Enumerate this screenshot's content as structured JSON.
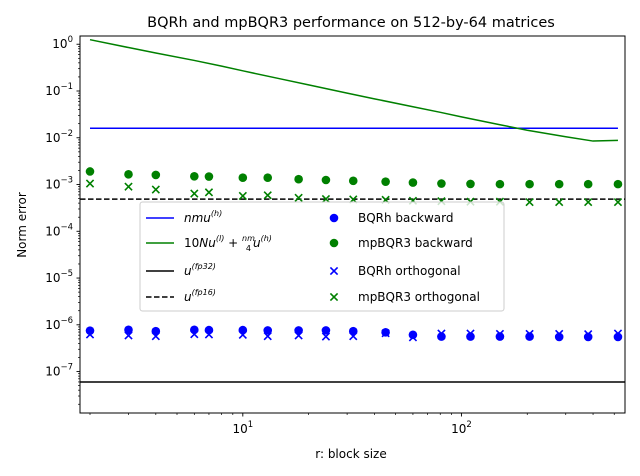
{
  "chart_data": {
    "type": "scatter",
    "title": "BQRh and mpBQR3 performance on 512-by-64 matrices",
    "xlabel": "r: block size",
    "ylabel": "Norm error",
    "xscale": "log",
    "yscale": "log",
    "xlim": [
      1.8,
      560
    ],
    "ylim": [
      1.3e-08,
      1.5
    ],
    "xticks": [
      {
        "value": 10,
        "base": "10",
        "exp": "1"
      },
      {
        "value": 100,
        "base": "10",
        "exp": "2"
      }
    ],
    "yticks": [
      {
        "value": 1,
        "base": "10",
        "exp": "0"
      },
      {
        "value": 0.1,
        "base": "10",
        "exp": "−1"
      },
      {
        "value": 0.01,
        "base": "10",
        "exp": "−2"
      },
      {
        "value": 0.001,
        "base": "10",
        "exp": "−3"
      },
      {
        "value": 0.0001,
        "base": "10",
        "exp": "−4"
      },
      {
        "value": 1e-05,
        "base": "10",
        "exp": "−5"
      },
      {
        "value": 1e-06,
        "base": "10",
        "exp": "−6"
      },
      {
        "value": 1e-07,
        "base": "10",
        "exp": "−7"
      }
    ],
    "grid": false,
    "x": [
      2,
      3,
      4,
      6,
      7,
      10,
      13,
      18,
      24,
      32,
      45,
      60,
      81,
      110,
      150,
      205,
      280,
      380,
      520
    ],
    "lines": [
      {
        "name": "nmu^(h)",
        "color": "#0000ff",
        "style": "solid",
        "x": [
          2,
          520
        ],
        "y": [
          0.016,
          0.016
        ]
      },
      {
        "name": "10Nu^(l) + (nm/4)u^(h)",
        "color": "#008000",
        "style": "solid",
        "x": [
          2,
          3,
          4,
          6,
          8,
          10,
          15,
          20,
          30,
          40,
          60,
          80,
          100,
          150,
          200,
          300,
          400,
          520
        ],
        "y": [
          1.25,
          0.85,
          0.65,
          0.45,
          0.34,
          0.27,
          0.18,
          0.135,
          0.09,
          0.068,
          0.046,
          0.035,
          0.028,
          0.019,
          0.0145,
          0.0105,
          0.0085,
          0.0088
        ]
      },
      {
        "name": "u^(fp32)",
        "color": "#000000",
        "style": "solid",
        "x": [
          1.8,
          560
        ],
        "y": [
          6e-08,
          6e-08
        ]
      },
      {
        "name": "u^(fp16)",
        "color": "#000000",
        "style": "dashed",
        "x": [
          1.8,
          560
        ],
        "y": [
          0.000488,
          0.000488
        ]
      }
    ],
    "series": [
      {
        "name": "BQRh backward",
        "color": "#0000ff",
        "marker": "circle",
        "values": [
          7.5e-07,
          7.8e-07,
          7.3e-07,
          7.8e-07,
          7.7e-07,
          7.7e-07,
          7.6e-07,
          7.6e-07,
          7.6e-07,
          7.3e-07,
          6.9e-07,
          6.1e-07,
          5.6e-07,
          5.6e-07,
          5.6e-07,
          5.6e-07,
          5.5e-07,
          5.5e-07,
          5.5e-07
        ]
      },
      {
        "name": "mpBQR3 backward",
        "color": "#008000",
        "marker": "circle",
        "values": [
          0.0019,
          0.00165,
          0.0016,
          0.0015,
          0.00148,
          0.0014,
          0.0014,
          0.0013,
          0.00125,
          0.0012,
          0.00115,
          0.0011,
          0.00105,
          0.00103,
          0.00102,
          0.00102,
          0.00102,
          0.00102,
          0.00102
        ]
      },
      {
        "name": "BQRh orthogonal",
        "color": "#0000ff",
        "marker": "x",
        "values": [
          6.2e-07,
          5.9e-07,
          5.7e-07,
          6.3e-07,
          6.2e-07,
          6.1e-07,
          5.7e-07,
          5.9e-07,
          5.6e-07,
          5.7e-07,
          6.6e-07,
          5.4e-07,
          6.5e-07,
          6.5e-07,
          6.4e-07,
          6.4e-07,
          6.4e-07,
          6.3e-07,
          6.5e-07
        ]
      },
      {
        "name": "mpBQR3 orthogonal",
        "color": "#008000",
        "marker": "x",
        "values": [
          0.00105,
          0.0009,
          0.00078,
          0.00064,
          0.00068,
          0.00057,
          0.00059,
          0.00052,
          0.00049,
          0.00048,
          0.00047,
          0.00045,
          0.00044,
          0.00043,
          0.00043,
          0.00042,
          0.00042,
          0.00042,
          0.00042
        ]
      }
    ],
    "legend": [
      {
        "kind": "line",
        "color": "#0000ff",
        "style": "solid",
        "parts": [
          {
            "t": "nmu",
            "it": true
          },
          {
            "t": "(h)",
            "sup": true,
            "it": true
          }
        ]
      },
      {
        "kind": "line",
        "color": "#008000",
        "style": "solid",
        "parts": [
          {
            "t": "10"
          },
          {
            "t": "Nu",
            "it": true
          },
          {
            "t": "(l)",
            "sup": true,
            "it": true
          },
          {
            "t": " + "
          },
          {
            "t": "nm",
            "frac_num": true,
            "it": true
          },
          {
            "t": "4",
            "frac_den": true
          },
          {
            "t": "u",
            "it": true
          },
          {
            "t": "(h)",
            "sup": true,
            "it": true
          }
        ]
      },
      {
        "kind": "line",
        "color": "#000000",
        "style": "solid",
        "parts": [
          {
            "t": "u",
            "it": true
          },
          {
            "t": "(fp32)",
            "sup": true,
            "it": true
          }
        ]
      },
      {
        "kind": "line",
        "color": "#000000",
        "style": "dashed",
        "parts": [
          {
            "t": "u",
            "it": true
          },
          {
            "t": "(fp16)",
            "sup": true,
            "it": true
          }
        ]
      },
      {
        "kind": "circle",
        "color": "#0000ff",
        "label": "BQRh backward"
      },
      {
        "kind": "circle",
        "color": "#008000",
        "label": "mpBQR3 backward"
      },
      {
        "kind": "x",
        "color": "#0000ff",
        "label": "BQRh orthogonal"
      },
      {
        "kind": "x",
        "color": "#008000",
        "label": "mpBQR3 orthogonal"
      }
    ]
  }
}
